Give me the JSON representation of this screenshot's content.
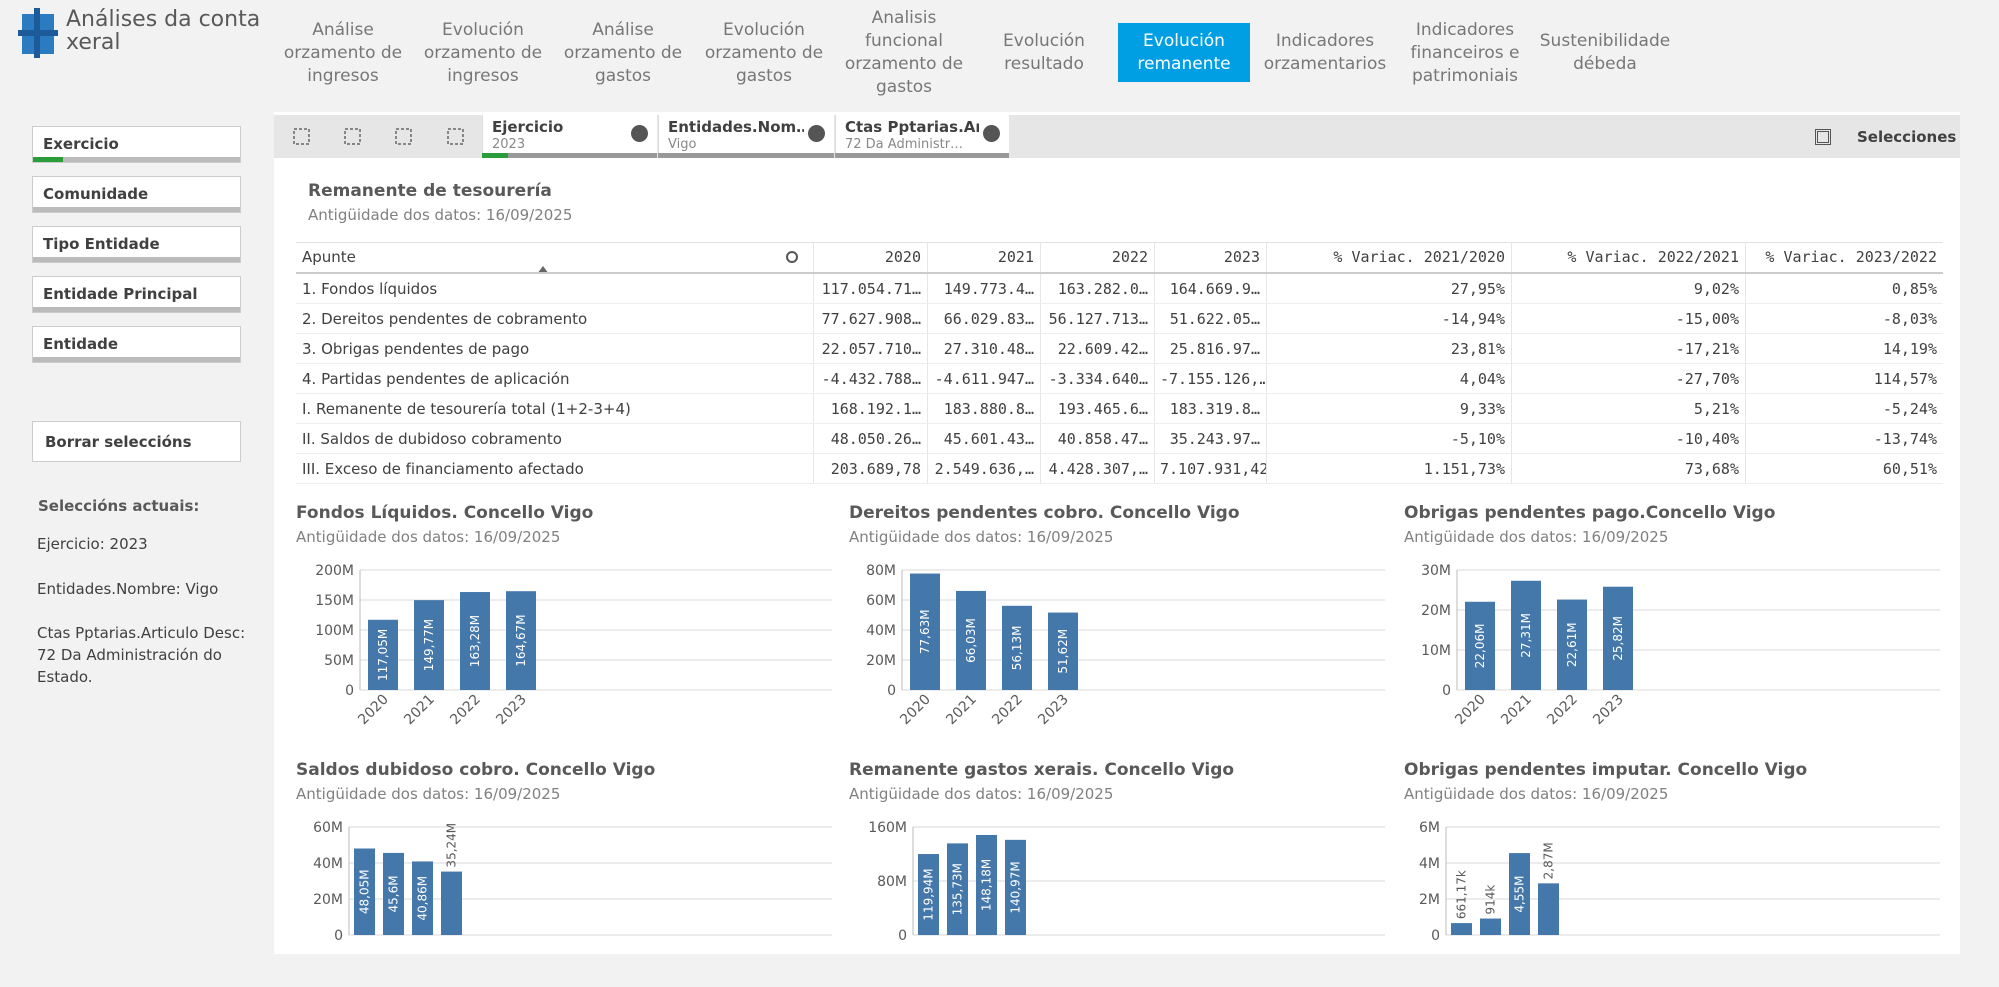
{
  "app": {
    "title": "Análises da conta xeral"
  },
  "nav": {
    "items": [
      "Análise orzamento de ingresos",
      "Evolución orzamento de ingresos",
      "Análise orzamento de gastos",
      "Evolución orzamento de gastos",
      "Analisis funcional orzamento de gastos",
      "Evolución resultado",
      "Evolución remanente",
      "Indicadores orzamentarios",
      "Indicadores financeiros e patrimoniais",
      "Sustenibilidade débeda"
    ],
    "active_index": 6
  },
  "filters": [
    "Exercicio",
    "Comunidade",
    "Tipo Entidade",
    "Entidade Principal",
    "Entidade"
  ],
  "clear_button": "Borrar seleccións",
  "current_selections": {
    "title": "Seleccións actuais:",
    "items": [
      "Ejercicio: 2023",
      "Entidades.Nombre: Vigo",
      "Ctas Pptarias.Articulo Desc: 72 Da Administración do Estado."
    ]
  },
  "selection_bar": {
    "chips": [
      {
        "field": "Ejercicio",
        "value": "2023"
      },
      {
        "field": "Entidades.Nom…",
        "value": "Vigo"
      },
      {
        "field": "Ctas Pptarias.Ar…",
        "value": "72 Da Administr…"
      }
    ],
    "selections_button": "Selecciones"
  },
  "table": {
    "title": "Remanente de tesourería",
    "subtitle": "Antigüidade dos datos: 16/09/2025",
    "columns": [
      "Apunte",
      "2020",
      "2021",
      "2022",
      "2023",
      "% Variac. 2021/2020",
      "% Variac. 2022/2021",
      "% Variac. 2023/2022"
    ],
    "rows": [
      [
        "1. Fondos líquidos",
        "117.054.71…",
        "149.773.4…",
        "163.282.0…",
        "164.669.9…",
        "27,95%",
        "9,02%",
        "0,85%"
      ],
      [
        "2. Dereitos pendentes de cobramento",
        "77.627.908…",
        "66.029.83…",
        "56.127.713…",
        "51.622.05…",
        "-14,94%",
        "-15,00%",
        "-8,03%"
      ],
      [
        "3. Obrigas pendentes de pago",
        "22.057.710…",
        "27.310.48…",
        "22.609.42…",
        "25.816.97…",
        "23,81%",
        "-17,21%",
        "14,19%"
      ],
      [
        "4. Partidas pendentes de aplicación",
        "-4.432.788…",
        "-4.611.947…",
        "-3.334.640…",
        "-7.155.126,…",
        "4,04%",
        "-27,70%",
        "114,57%"
      ],
      [
        "I. Remanente de tesourería total (1+2-3+4)",
        "168.192.1…",
        "183.880.8…",
        "193.465.6…",
        "183.319.8…",
        "9,33%",
        "5,21%",
        "-5,24%"
      ],
      [
        "II. Saldos de dubidoso cobramento",
        "48.050.26…",
        "45.601.43…",
        "40.858.47…",
        "35.243.97…",
        "-5,10%",
        "-10,40%",
        "-13,74%"
      ],
      [
        "III. Exceso de financiamento afectado",
        "203.689,78",
        "2.549.636,…",
        "4.428.307,…",
        "7.107.931,42",
        "1.151,73%",
        "73,68%",
        "60,51%"
      ]
    ]
  },
  "charts": [
    {
      "type": "bar",
      "title": "Fondos Líquidos. Concello Vigo",
      "subtitle": "Antigüidade dos datos: 16/09/2025",
      "color": "#4477aa",
      "categories": [
        "2020",
        "2021",
        "2022",
        "2023"
      ],
      "values": [
        117050000,
        149770000,
        163280000,
        164670000
      ],
      "value_labels": [
        "117,05M",
        "149,77M",
        "163,28M",
        "164,67M"
      ],
      "ylim": [
        0,
        200000000
      ],
      "yticks": [
        0,
        {
          "value": 50000000,
          "label": "50M"
        },
        {
          "value": 100000000,
          "label": "100M"
        },
        {
          "value": 150000000,
          "label": "150M"
        },
        {
          "value": 200000000,
          "label": "200M"
        }
      ],
      "grid": true
    },
    {
      "type": "bar",
      "title": "Dereitos pendentes cobro. Concello Vigo",
      "subtitle": "Antigüidade dos datos: 16/09/2025",
      "color": "#4477aa",
      "categories": [
        "2020",
        "2021",
        "2022",
        "2023"
      ],
      "values": [
        77630000,
        66030000,
        56130000,
        51620000
      ],
      "value_labels": [
        "77,63M",
        "66,03M",
        "56,13M",
        "51,62M"
      ],
      "ylim": [
        0,
        80000000
      ],
      "yticks": [
        0,
        {
          "value": 20000000,
          "label": "20M"
        },
        {
          "value": 40000000,
          "label": "40M"
        },
        {
          "value": 60000000,
          "label": "60M"
        },
        {
          "value": 80000000,
          "label": "80M"
        }
      ],
      "grid": true
    },
    {
      "type": "bar",
      "title": "Obrigas pendentes pago.Concello Vigo",
      "subtitle": "Antigüidade dos datos: 16/09/2025",
      "color": "#4477aa",
      "categories": [
        "2020",
        "2021",
        "2022",
        "2023"
      ],
      "values": [
        22060000,
        27310000,
        22610000,
        25820000
      ],
      "value_labels": [
        "22,06M",
        "27,31M",
        "22,61M",
        "25,82M"
      ],
      "ylim": [
        0,
        30000000
      ],
      "yticks": [
        0,
        {
          "value": 10000000,
          "label": "10M"
        },
        {
          "value": 20000000,
          "label": "20M"
        },
        {
          "value": 30000000,
          "label": "30M"
        }
      ],
      "grid": true
    },
    {
      "type": "bar",
      "title": "Saldos dubidoso cobro. Concello Vigo",
      "subtitle": "Antigüidade dos datos: 16/09/2025",
      "color": "#4477aa",
      "categories": [
        null,
        null,
        null,
        null
      ],
      "values": [
        48050000,
        45600000,
        40860000,
        35240000
      ],
      "value_labels": [
        "48,05M",
        "45,6M",
        "40,86M",
        "35,24M"
      ],
      "ylim": [
        0,
        60000000
      ],
      "yticks": [
        0,
        {
          "value": 20000000,
          "label": "20M"
        },
        {
          "value": 40000000,
          "label": "40M"
        },
        {
          "value": 60000000,
          "label": "60M"
        }
      ],
      "grid": true
    },
    {
      "type": "bar",
      "title": "Remanente gastos xerais. Concello Vigo",
      "subtitle": "Antigüidade dos datos: 16/09/2025",
      "color": "#4477aa",
      "categories": [
        null,
        null,
        null,
        null
      ],
      "values": [
        119940000,
        135730000,
        148180000,
        140970000
      ],
      "value_labels": [
        "119,94M",
        "135,73M",
        "148,18M",
        "140,97M"
      ],
      "ylim": [
        0,
        160000000
      ],
      "yticks": [
        0,
        {
          "value": 80000000,
          "label": "80M"
        },
        {
          "value": 160000000,
          "label": "160M"
        }
      ],
      "grid": true
    },
    {
      "type": "bar",
      "title": "Obrigas pendentes imputar. Concello Vigo",
      "subtitle": "Antigüidade dos datos: 16/09/2025",
      "color": "#4477aa",
      "categories": [
        null,
        null,
        null,
        null
      ],
      "values": [
        661170,
        914000,
        4550000,
        2870000
      ],
      "value_labels": [
        "661,17k",
        "914k",
        "4,55M",
        "2,87M"
      ],
      "ylim": [
        0,
        6000000
      ],
      "yticks": [
        0,
        {
          "value": 2000000,
          "label": "2M"
        },
        {
          "value": 4000000,
          "label": "4M"
        },
        {
          "value": 6000000,
          "label": "6M"
        }
      ],
      "grid": true
    }
  ]
}
